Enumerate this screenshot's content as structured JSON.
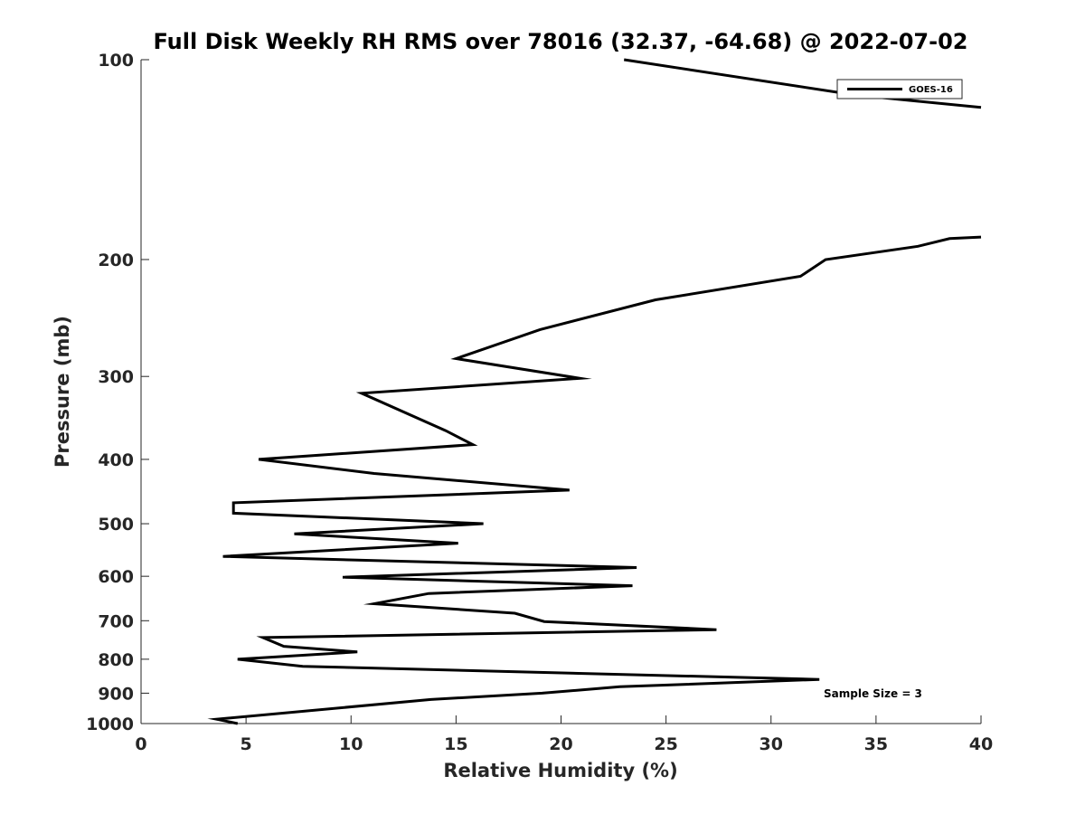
{
  "chart_data": {
    "type": "line",
    "title": "Full Disk Weekly RH RMS over 78016 (32.37, -64.68) @ 2022-07-02",
    "xlabel": "Relative Humidity (%)",
    "ylabel": "Pressure (mb)",
    "xlim": [
      0,
      40
    ],
    "ylim": [
      100,
      1000
    ],
    "yscale": "log",
    "y_reversed": true,
    "xticks": [
      0,
      5,
      10,
      15,
      20,
      25,
      30,
      35,
      40
    ],
    "yticks": [
      100,
      200,
      300,
      400,
      500,
      600,
      700,
      800,
      900,
      1000
    ],
    "grid": false,
    "legend_position": "top-right",
    "annotation": "Sample Size = 3",
    "series": [
      {
        "name": "GOES-16",
        "color": "#000000",
        "segments": [
          [
            {
              "x": 23.0,
              "y": 100
            },
            {
              "x": 34.0,
              "y": 113
            },
            {
              "x": 40.0,
              "y": 118
            }
          ],
          [
            {
              "x": 40.0,
              "y": 185
            },
            {
              "x": 38.5,
              "y": 186
            },
            {
              "x": 37.0,
              "y": 191
            },
            {
              "x": 32.6,
              "y": 200
            },
            {
              "x": 31.4,
              "y": 212
            },
            {
              "x": 24.5,
              "y": 230
            },
            {
              "x": 19.0,
              "y": 255
            },
            {
              "x": 15.0,
              "y": 282
            },
            {
              "x": 20.9,
              "y": 302
            },
            {
              "x": 10.5,
              "y": 318
            },
            {
              "x": 14.5,
              "y": 362
            },
            {
              "x": 15.8,
              "y": 380
            },
            {
              "x": 5.6,
              "y": 400
            },
            {
              "x": 11.1,
              "y": 420
            },
            {
              "x": 20.4,
              "y": 445
            },
            {
              "x": 4.4,
              "y": 465
            },
            {
              "x": 4.4,
              "y": 482
            },
            {
              "x": 16.3,
              "y": 500
            },
            {
              "x": 7.3,
              "y": 518
            },
            {
              "x": 15.1,
              "y": 535
            },
            {
              "x": 3.9,
              "y": 560
            },
            {
              "x": 23.6,
              "y": 582
            },
            {
              "x": 9.6,
              "y": 602
            },
            {
              "x": 23.4,
              "y": 620
            },
            {
              "x": 13.7,
              "y": 637
            },
            {
              "x": 11.1,
              "y": 660
            },
            {
              "x": 17.8,
              "y": 682
            },
            {
              "x": 19.2,
              "y": 702
            },
            {
              "x": 27.4,
              "y": 722
            },
            {
              "x": 5.8,
              "y": 742
            },
            {
              "x": 6.8,
              "y": 765
            },
            {
              "x": 10.3,
              "y": 780
            },
            {
              "x": 4.6,
              "y": 800
            },
            {
              "x": 7.7,
              "y": 820
            },
            {
              "x": 32.3,
              "y": 858
            },
            {
              "x": 22.8,
              "y": 880
            },
            {
              "x": 19.1,
              "y": 900
            },
            {
              "x": 13.8,
              "y": 920
            },
            {
              "x": 3.6,
              "y": 985
            },
            {
              "x": 4.6,
              "y": 1000
            }
          ]
        ]
      }
    ]
  }
}
